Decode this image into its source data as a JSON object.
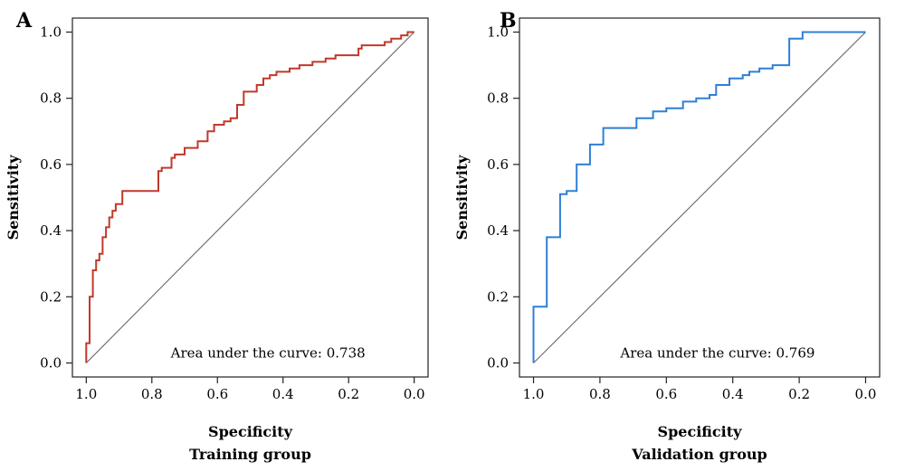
{
  "chart_data": [
    {
      "type": "line",
      "panel_label": "A",
      "xlabel": "Specificity",
      "ylabel": "Sensitivity",
      "subtitle": "Training group",
      "annotation": "Area under the curve: 0.738",
      "xlim": [
        1.0,
        0.0
      ],
      "ylim": [
        0.0,
        1.0
      ],
      "x_reversed": true,
      "xticks": [
        1.0,
        0.8,
        0.6,
        0.4,
        0.2,
        0.0
      ],
      "xtick_labels": [
        "1.0",
        "0.8",
        "0.6",
        "0.4",
        "0.2",
        "0.0"
      ],
      "yticks": [
        0.0,
        0.2,
        0.4,
        0.6,
        0.8,
        1.0
      ],
      "ytick_labels": [
        "0.0",
        "0.2",
        "0.4",
        "0.6",
        "0.8",
        "1.0"
      ],
      "color": "#c0392b",
      "diagonal": true,
      "series": [
        {
          "points": [
            [
              1.0,
              0.0
            ],
            [
              1.0,
              0.06
            ],
            [
              0.99,
              0.06
            ],
            [
              0.99,
              0.2
            ],
            [
              0.98,
              0.2
            ],
            [
              0.98,
              0.28
            ],
            [
              0.97,
              0.28
            ],
            [
              0.97,
              0.31
            ],
            [
              0.96,
              0.31
            ],
            [
              0.96,
              0.33
            ],
            [
              0.95,
              0.33
            ],
            [
              0.95,
              0.38
            ],
            [
              0.94,
              0.38
            ],
            [
              0.94,
              0.41
            ],
            [
              0.93,
              0.41
            ],
            [
              0.93,
              0.44
            ],
            [
              0.92,
              0.44
            ],
            [
              0.92,
              0.46
            ],
            [
              0.91,
              0.46
            ],
            [
              0.91,
              0.48
            ],
            [
              0.89,
              0.48
            ],
            [
              0.89,
              0.52
            ],
            [
              0.78,
              0.52
            ],
            [
              0.78,
              0.58
            ],
            [
              0.77,
              0.58
            ],
            [
              0.77,
              0.59
            ],
            [
              0.74,
              0.59
            ],
            [
              0.74,
              0.62
            ],
            [
              0.73,
              0.62
            ],
            [
              0.73,
              0.63
            ],
            [
              0.7,
              0.63
            ],
            [
              0.7,
              0.65
            ],
            [
              0.66,
              0.65
            ],
            [
              0.66,
              0.67
            ],
            [
              0.63,
              0.67
            ],
            [
              0.63,
              0.7
            ],
            [
              0.61,
              0.7
            ],
            [
              0.61,
              0.72
            ],
            [
              0.58,
              0.72
            ],
            [
              0.58,
              0.73
            ],
            [
              0.56,
              0.73
            ],
            [
              0.56,
              0.74
            ],
            [
              0.54,
              0.74
            ],
            [
              0.54,
              0.78
            ],
            [
              0.52,
              0.78
            ],
            [
              0.52,
              0.82
            ],
            [
              0.48,
              0.82
            ],
            [
              0.48,
              0.84
            ],
            [
              0.46,
              0.84
            ],
            [
              0.46,
              0.86
            ],
            [
              0.44,
              0.86
            ],
            [
              0.44,
              0.87
            ],
            [
              0.42,
              0.87
            ],
            [
              0.42,
              0.88
            ],
            [
              0.38,
              0.88
            ],
            [
              0.38,
              0.89
            ],
            [
              0.35,
              0.89
            ],
            [
              0.35,
              0.9
            ],
            [
              0.31,
              0.9
            ],
            [
              0.31,
              0.91
            ],
            [
              0.27,
              0.91
            ],
            [
              0.27,
              0.92
            ],
            [
              0.24,
              0.92
            ],
            [
              0.24,
              0.93
            ],
            [
              0.17,
              0.93
            ],
            [
              0.17,
              0.95
            ],
            [
              0.16,
              0.95
            ],
            [
              0.16,
              0.96
            ],
            [
              0.09,
              0.96
            ],
            [
              0.09,
              0.97
            ],
            [
              0.07,
              0.97
            ],
            [
              0.07,
              0.98
            ],
            [
              0.04,
              0.98
            ],
            [
              0.04,
              0.99
            ],
            [
              0.02,
              0.99
            ],
            [
              0.02,
              1.0
            ],
            [
              0.0,
              1.0
            ]
          ]
        }
      ]
    },
    {
      "type": "line",
      "panel_label": "B",
      "xlabel": "Specificity",
      "ylabel": "Sensitivity",
      "subtitle": "Validation group",
      "annotation": "Area under the curve: 0.769",
      "xlim": [
        1.0,
        0.0
      ],
      "ylim": [
        0.0,
        1.0
      ],
      "x_reversed": true,
      "xticks": [
        1.0,
        0.8,
        0.6,
        0.4,
        0.2,
        0.0
      ],
      "xtick_labels": [
        "1.0",
        "0.8",
        "0.6",
        "0.4",
        "0.2",
        "0.0"
      ],
      "yticks": [
        0.0,
        0.2,
        0.4,
        0.6,
        0.8,
        1.0
      ],
      "ytick_labels": [
        "0.0",
        "0.2",
        "0.4",
        "0.6",
        "0.8",
        "1.0"
      ],
      "color": "#2e7fd6",
      "diagonal": true,
      "series": [
        {
          "points": [
            [
              1.0,
              0.0
            ],
            [
              1.0,
              0.17
            ],
            [
              0.96,
              0.17
            ],
            [
              0.96,
              0.38
            ],
            [
              0.92,
              0.38
            ],
            [
              0.92,
              0.51
            ],
            [
              0.9,
              0.51
            ],
            [
              0.9,
              0.52
            ],
            [
              0.87,
              0.52
            ],
            [
              0.87,
              0.6
            ],
            [
              0.83,
              0.6
            ],
            [
              0.83,
              0.66
            ],
            [
              0.79,
              0.66
            ],
            [
              0.79,
              0.71
            ],
            [
              0.69,
              0.71
            ],
            [
              0.69,
              0.74
            ],
            [
              0.64,
              0.74
            ],
            [
              0.64,
              0.76
            ],
            [
              0.6,
              0.76
            ],
            [
              0.6,
              0.77
            ],
            [
              0.55,
              0.77
            ],
            [
              0.55,
              0.79
            ],
            [
              0.51,
              0.79
            ],
            [
              0.51,
              0.8
            ],
            [
              0.47,
              0.8
            ],
            [
              0.47,
              0.81
            ],
            [
              0.45,
              0.81
            ],
            [
              0.45,
              0.84
            ],
            [
              0.41,
              0.84
            ],
            [
              0.41,
              0.86
            ],
            [
              0.37,
              0.86
            ],
            [
              0.37,
              0.87
            ],
            [
              0.35,
              0.87
            ],
            [
              0.35,
              0.88
            ],
            [
              0.32,
              0.88
            ],
            [
              0.32,
              0.89
            ],
            [
              0.28,
              0.89
            ],
            [
              0.28,
              0.9
            ],
            [
              0.23,
              0.9
            ],
            [
              0.23,
              0.98
            ],
            [
              0.19,
              0.98
            ],
            [
              0.19,
              1.0
            ],
            [
              0.0,
              1.0
            ]
          ]
        }
      ]
    }
  ]
}
